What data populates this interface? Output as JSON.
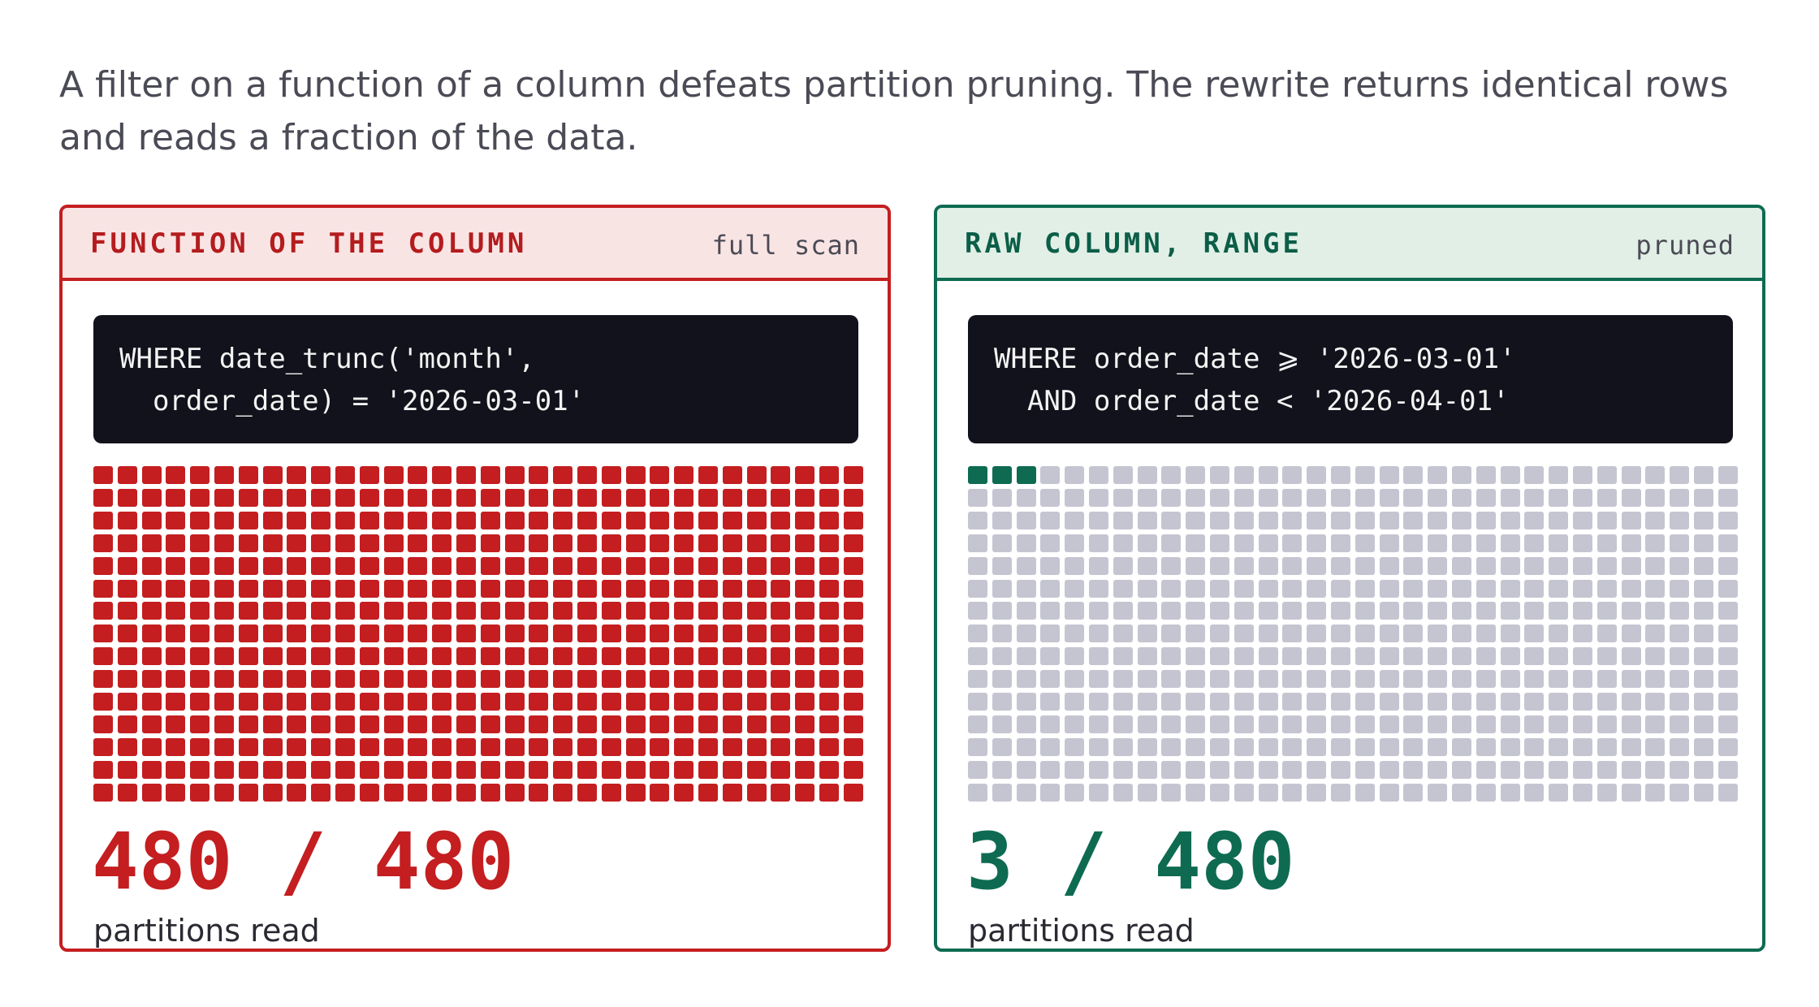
{
  "intro": "A filter on a function of a column defeats partition pruning. The rewrite returns identical rows and reads a fraction of the data.",
  "panels": {
    "bad": {
      "title": "FUNCTION OF THE COLUMN",
      "tag": "full scan",
      "code": [
        "WHERE date_trunc('month',",
        "  order_date) = '2026-03-01'"
      ],
      "partitions_read": 480,
      "partitions_total": 480,
      "result_text": "480 / 480",
      "result_label": "partitions read",
      "read_color": "#c41e20",
      "skipped_color": "#c5c5d2"
    },
    "good": {
      "title": "RAW COLUMN, RANGE",
      "tag": "pruned",
      "code": [
        "WHERE order_date ⩾ '2026-03-01'",
        "  AND order_date < '2026-04-01'"
      ],
      "partitions_read": 3,
      "partitions_total": 480,
      "result_text": "3 / 480",
      "result_label": "partitions read",
      "read_color": "#0e6b52",
      "skipped_color": "#c5c5d2"
    }
  }
}
